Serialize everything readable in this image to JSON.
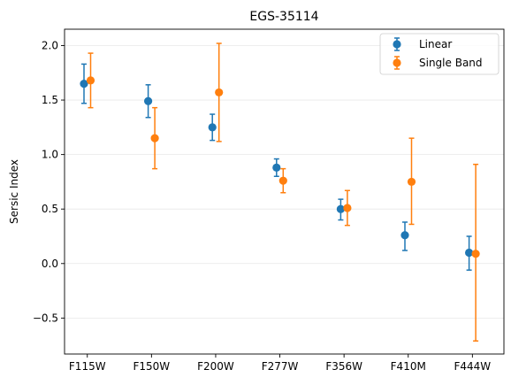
{
  "chart_data": {
    "type": "scatter",
    "title": "EGS-35114",
    "xlabel": "",
    "ylabel": "Sersic Index",
    "categories": [
      "F115W",
      "F150W",
      "F200W",
      "F277W",
      "F356W",
      "F410M",
      "F444W"
    ],
    "ylim": [
      -0.83,
      2.15
    ],
    "yticks": [
      -0.5,
      0.0,
      0.5,
      1.0,
      1.5,
      2.0
    ],
    "ytick_labels": [
      "−0.5",
      "0.0",
      "0.5",
      "1.0",
      "1.5",
      "2.0"
    ],
    "grid": "horizontal",
    "legend": "top-right",
    "series": [
      {
        "name": "Linear",
        "color": "#1f77b4",
        "values": [
          1.65,
          1.49,
          1.25,
          0.88,
          0.5,
          0.26,
          0.1
        ],
        "err_low": [
          0.18,
          0.15,
          0.12,
          0.08,
          0.1,
          0.14,
          0.16
        ],
        "err_high": [
          0.18,
          0.15,
          0.12,
          0.08,
          0.09,
          0.12,
          0.15
        ]
      },
      {
        "name": "Single Band",
        "color": "#ff7f0e",
        "values": [
          1.68,
          1.15,
          1.57,
          0.76,
          0.51,
          0.75,
          0.09
        ],
        "err_low": [
          0.25,
          0.28,
          0.45,
          0.11,
          0.16,
          0.39,
          0.8
        ],
        "err_high": [
          0.25,
          0.28,
          0.45,
          0.11,
          0.16,
          0.4,
          0.82
        ]
      }
    ]
  }
}
